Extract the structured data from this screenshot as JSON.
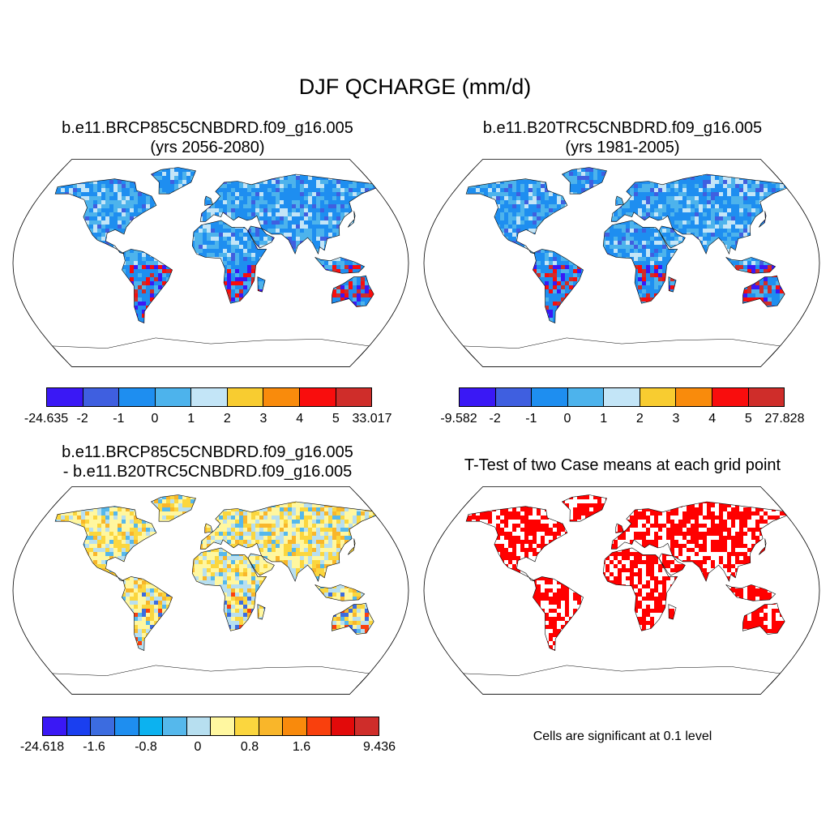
{
  "figure": {
    "title": "DJF QCHARGE (mm/d)"
  },
  "panels": [
    {
      "title_line1": "b.e11.BRCP85C5CNBDRD.f09_g16.005",
      "title_line2": "(yrs 2056-2080)",
      "kind": "field",
      "labelbar": {
        "colors": [
          "#3a18f5",
          "#3f5fe0",
          "#1e8ef0",
          "#4db3ec",
          "#c3e5f7",
          "#f8cc30",
          "#f98b0c",
          "#f90d0d",
          "#cf2d2a"
        ],
        "labels": [
          "-24.635",
          "-2",
          "-1",
          "0",
          "1",
          "2",
          "3",
          "4",
          "5",
          "33.017"
        ]
      }
    },
    {
      "title_line1": "b.e11.B20TRC5CNBDRD.f09_g16.005",
      "title_line2": "(yrs 1981-2005)",
      "kind": "field",
      "labelbar": {
        "colors": [
          "#3a18f5",
          "#3f5fe0",
          "#1e8ef0",
          "#4db3ec",
          "#c3e5f7",
          "#f8cc30",
          "#f98b0c",
          "#f90d0d",
          "#cf2d2a"
        ],
        "labels": [
          "-9.582",
          "-2",
          "-1",
          "0",
          "1",
          "2",
          "3",
          "4",
          "5",
          "27.828"
        ]
      }
    },
    {
      "title_line1": "b.e11.BRCP85C5CNBDRD.f09_g16.005",
      "title_line2": "- b.e11.B20TRC5CNBDRD.f09_g16.005",
      "kind": "difference",
      "labelbar": {
        "colors": [
          "#3a18f5",
          "#1a3ff0",
          "#3c6ce0",
          "#1e8ef0",
          "#0cb2f0",
          "#55b8ec",
          "#b7dff0",
          "#fff7a0",
          "#fbd63e",
          "#f9b62a",
          "#f98a0c",
          "#f9400d",
          "#e20a0a",
          "#cf2d2a"
        ],
        "labels": [
          "-24.618",
          "",
          "-1.6",
          "",
          "-0.8",
          "",
          "0",
          "",
          "0.8",
          "",
          "1.6",
          "",
          "",
          "9.436"
        ]
      }
    },
    {
      "title_line1": "T-Test of two Case means at each grid point",
      "title_line2": "",
      "kind": "ttest",
      "note": "Cells are significant at 0.1 level",
      "sig_color": "#ff0000"
    }
  ]
}
